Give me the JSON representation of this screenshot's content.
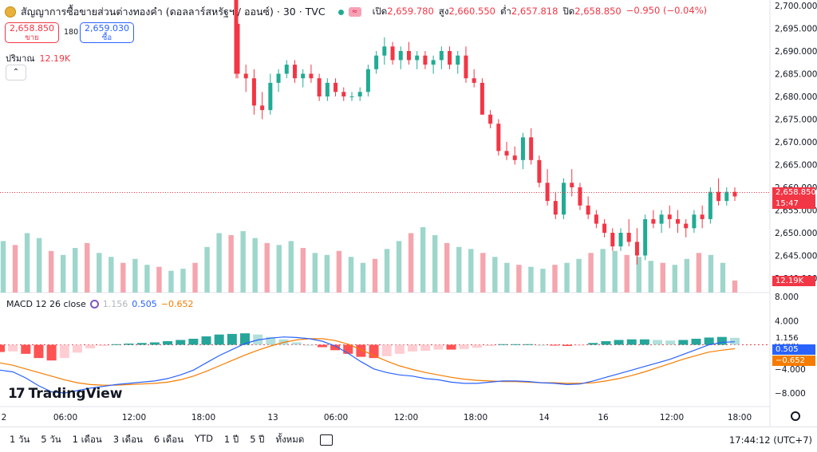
{
  "header": {
    "symbol_title": "สัญญาการซื้อขายส่วนต่างทองคำ (ดอลลาร์สหรัฐฯ / ออนซ์) · 30 · TVC",
    "market_badge": "≈",
    "ohlc": [
      {
        "label": "เปิด",
        "value": "2,659.780"
      },
      {
        "label": "สูง",
        "value": "2,660.550"
      },
      {
        "label": "ต่ำ",
        "value": "2,657.818"
      },
      {
        "label": "ปิด",
        "value": "2,658.850"
      },
      {
        "label": "",
        "value": "−0.950 (−0.04%)"
      }
    ]
  },
  "trade": {
    "sell_price": "2,658.850",
    "sell_label": "ขาย",
    "spread": "180",
    "buy_price": "2,659.030",
    "buy_label": "ซื้อ"
  },
  "volume_legend": {
    "label": "ปริมาณ",
    "value": "12.19K"
  },
  "collapse_glyph": "⌃",
  "macd_legend": {
    "name": "MACD 12 26 close",
    "histogram": "1.156",
    "macd": "0.505",
    "signal": "−0.652"
  },
  "logo_text": "TradingView",
  "logo_mark": "17",
  "price_axis": {
    "ticks": [
      "2,700.000",
      "2,695.000",
      "2,690.000",
      "2,685.000",
      "2,680.000",
      "2,675.000",
      "2,670.000",
      "2,665.000",
      "2,660.000",
      "2,655.000",
      "2,650.000",
      "2,645.000",
      "2,640.000"
    ],
    "last_price_tag": "2,658.850",
    "countdown": "15:47",
    "volume_tag": "12.19K"
  },
  "macd_axis": {
    "ticks": [
      "8.000",
      "4.000",
      "0.000",
      "−4.000",
      "−8.000"
    ],
    "hist_tag": "1.156",
    "macd_tag": "0.505",
    "signal_tag": "−0.652"
  },
  "time_axis": [
    "2",
    "06:00",
    "12:00",
    "18:00",
    "13",
    "06:00",
    "12:00",
    "18:00",
    "14",
    "16",
    "12:00",
    "18:00"
  ],
  "bottom": {
    "ranges": [
      "1 วัน",
      "5 วัน",
      "1 เดือน",
      "3 เดือน",
      "6 เดือน",
      "YTD",
      "1 ปี",
      "5 ปี",
      "ทั้งหมด"
    ],
    "clock": "17:44:12 (UTC+7)"
  },
  "colors": {
    "up": "#22ab94",
    "down": "#f23645",
    "macd": "#2962ff",
    "signal": "#f57c00"
  },
  "chart_data": {
    "type": "candlestick",
    "price_ylim": [
      2640,
      2700
    ],
    "candles": [
      [
        2696,
        2697,
        2684,
        2685
      ],
      [
        2685,
        2687,
        2681,
        2684
      ],
      [
        2684,
        2686,
        2676,
        2678
      ],
      [
        2678,
        2681,
        2675,
        2677
      ],
      [
        2677,
        2685,
        2676,
        2683
      ],
      [
        2683,
        2686,
        2681,
        2685
      ],
      [
        2685,
        2688,
        2684,
        2687
      ],
      [
        2687,
        2688,
        2683,
        2684
      ],
      [
        2684,
        2686,
        2682,
        2685
      ],
      [
        2685,
        2687,
        2683,
        2684
      ],
      [
        2684,
        2685,
        2679,
        2680
      ],
      [
        2680,
        2684,
        2679,
        2683
      ],
      [
        2683,
        2684,
        2680,
        2681
      ],
      [
        2681,
        2682,
        2679,
        2680
      ],
      [
        2680,
        2681,
        2679,
        2680
      ],
      [
        2680,
        2682,
        2679,
        2681
      ],
      [
        2681,
        2687,
        2680,
        2686
      ],
      [
        2686,
        2690,
        2685,
        2689
      ],
      [
        2689,
        2693,
        2687,
        2691
      ],
      [
        2691,
        2692,
        2687,
        2688
      ],
      [
        2688,
        2691,
        2686,
        2690
      ],
      [
        2690,
        2692,
        2687,
        2688
      ],
      [
        2688,
        2690,
        2686,
        2689
      ],
      [
        2689,
        2690,
        2686,
        2687
      ],
      [
        2687,
        2689,
        2685,
        2688
      ],
      [
        2688,
        2691,
        2686,
        2690
      ],
      [
        2690,
        2691,
        2686,
        2687
      ],
      [
        2687,
        2690,
        2685,
        2689
      ],
      [
        2689,
        2691,
        2683,
        2684
      ],
      [
        2684,
        2686,
        2682,
        2683
      ],
      [
        2683,
        2684,
        2676,
        2676
      ],
      [
        2676,
        2677,
        2673,
        2674
      ],
      [
        2674,
        2675,
        2667,
        2668
      ],
      [
        2668,
        2670,
        2666,
        2667
      ],
      [
        2667,
        2669,
        2665,
        2666
      ],
      [
        2666,
        2672,
        2664,
        2671
      ],
      [
        2671,
        2673,
        2665,
        2666
      ],
      [
        2666,
        2667,
        2660,
        2661
      ],
      [
        2661,
        2664,
        2656,
        2657
      ],
      [
        2657,
        2659,
        2653,
        2654
      ],
      [
        2654,
        2662,
        2653,
        2661
      ],
      [
        2661,
        2664,
        2658,
        2660
      ],
      [
        2660,
        2661,
        2655,
        2656
      ],
      [
        2656,
        2658,
        2653,
        2654
      ],
      [
        2654,
        2655,
        2651,
        2652
      ],
      [
        2652,
        2653,
        2649,
        2650
      ],
      [
        2650,
        2651,
        2646,
        2647
      ],
      [
        2647,
        2651,
        2646,
        2650
      ],
      [
        2650,
        2653,
        2647,
        2648
      ],
      [
        2648,
        2651,
        2643,
        2645
      ],
      [
        2645,
        2654,
        2644,
        2653
      ],
      [
        2653,
        2655,
        2651,
        2652
      ],
      [
        2652,
        2655,
        2650,
        2654
      ],
      [
        2654,
        2656,
        2651,
        2653
      ],
      [
        2653,
        2655,
        2650,
        2652
      ],
      [
        2652,
        2653,
        2649,
        2651
      ],
      [
        2651,
        2655,
        2650,
        2654
      ],
      [
        2654,
        2656,
        2651,
        2653
      ],
      [
        2653,
        2660,
        2652,
        2659
      ],
      [
        2659,
        2662,
        2656,
        2657
      ],
      [
        2657,
        2660,
        2656,
        2659
      ],
      [
        2659,
        2660,
        2657,
        2658
      ]
    ],
    "volume": [
      52,
      48,
      60,
      55,
      42,
      38,
      45,
      50,
      40,
      36,
      30,
      34,
      28,
      26,
      22,
      24,
      30,
      46,
      60,
      58,
      62,
      55,
      50,
      48,
      52,
      45,
      40,
      38,
      42,
      36,
      30,
      34,
      44,
      52,
      60,
      66,
      58,
      50,
      46,
      44,
      40,
      36,
      30,
      28,
      26,
      24,
      28,
      30,
      34,
      40,
      44,
      42,
      38,
      36,
      32,
      30,
      28,
      34,
      40,
      38,
      30,
      12.19
    ],
    "macd": [
      -4.2,
      -4.5,
      -5.5,
      -6.8,
      -7.8,
      -8.0,
      -7.6,
      -7.2,
      -6.9,
      -6.6,
      -6.4,
      -6.2,
      -6.0,
      -5.6,
      -5.0,
      -4.2,
      -3.0,
      -1.8,
      -0.8,
      0.2,
      0.8,
      1.1,
      1.3,
      1.2,
      1.0,
      0.6,
      -0.2,
      -1.4,
      -2.8,
      -4.0,
      -4.6,
      -5.0,
      -5.2,
      -5.6,
      -5.8,
      -6.2,
      -6.4,
      -6.4,
      -6.2,
      -6.0,
      -6.0,
      -6.1,
      -6.3,
      -6.4,
      -6.6,
      -6.5,
      -6.0,
      -5.4,
      -4.8,
      -4.2,
      -3.6,
      -3.0,
      -2.4,
      -1.6,
      -0.8,
      0.0,
      0.4,
      0.5
    ],
    "signal": [
      -3.0,
      -3.4,
      -4.0,
      -4.6,
      -5.2,
      -5.8,
      -6.3,
      -6.6,
      -6.7,
      -6.7,
      -6.6,
      -6.5,
      -6.4,
      -6.2,
      -5.8,
      -5.2,
      -4.4,
      -3.5,
      -2.6,
      -1.7,
      -0.9,
      -0.2,
      0.4,
      0.8,
      1.0,
      1.0,
      0.7,
      0.1,
      -0.8,
      -1.8,
      -2.7,
      -3.5,
      -4.1,
      -4.6,
      -5.0,
      -5.4,
      -5.7,
      -5.9,
      -6.0,
      -6.1,
      -6.1,
      -6.2,
      -6.3,
      -6.3,
      -6.4,
      -6.4,
      -6.3,
      -6.0,
      -5.6,
      -5.1,
      -4.5,
      -3.8,
      -3.1,
      -2.4,
      -1.8,
      -1.2,
      -0.9,
      -0.652
    ],
    "macd_ylim": [
      -10,
      10
    ]
  }
}
